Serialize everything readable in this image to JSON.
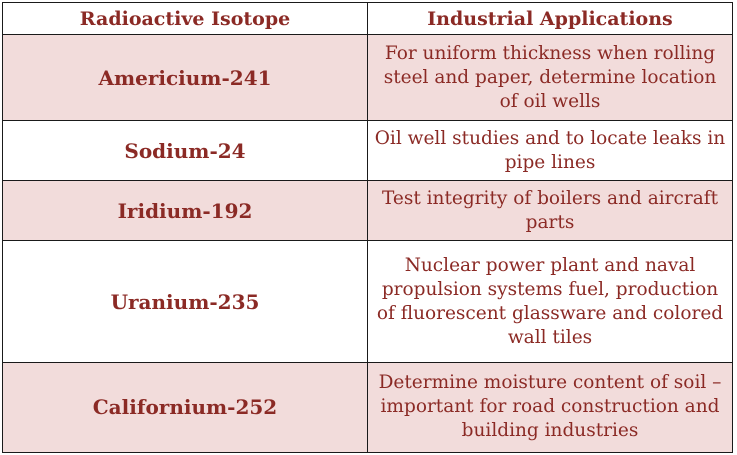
{
  "table": {
    "headers": {
      "isotope": "Radioactive Isotope",
      "applications": "Industrial Applications"
    },
    "rows": [
      {
        "isotope": "Americium-241",
        "application": "For uniform thickness when rolling steel and paper, determine location of oil wells",
        "shaded": true
      },
      {
        "isotope": "Sodium-24",
        "application": "Oil well studies and to locate leaks in pipe lines",
        "shaded": false
      },
      {
        "isotope": "Iridium-192",
        "application": "Test integrity of boilers and aircraft parts",
        "shaded": true
      },
      {
        "isotope": "Uranium-235",
        "application": "Nuclear power plant and naval propulsion systems fuel, production of fluorescent glassware and colored wall tiles",
        "shaded": false
      },
      {
        "isotope": "Californium-252",
        "application": "Determine moisture content of soil – important for road construction and building industries",
        "shaded": true
      }
    ]
  },
  "colors": {
    "text": "#8b2a25",
    "shaded_row": "#f2dcdb",
    "plain_row": "#ffffff",
    "border": "#1a1a1a"
  }
}
